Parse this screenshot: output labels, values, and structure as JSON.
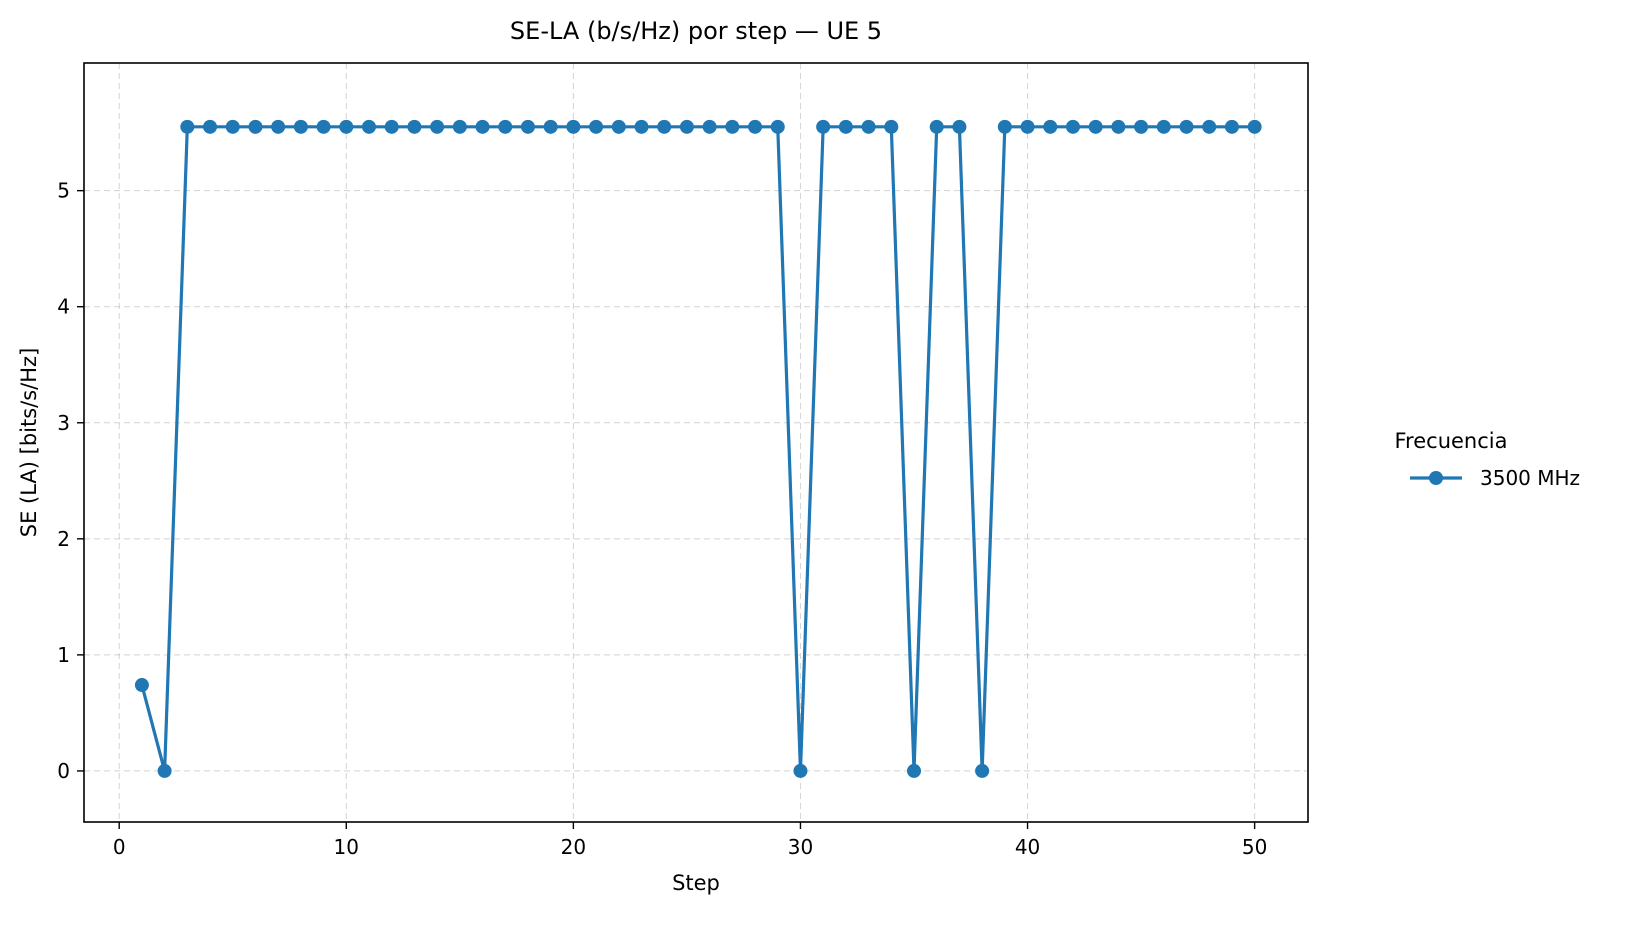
{
  "chart_data": {
    "type": "line",
    "title": "SE-LA (b/s/Hz) por step — UE 5",
    "xlabel": "Step",
    "ylabel": "SE (LA) [bits/s/Hz]",
    "xlim": [
      -1.55,
      52.35
    ],
    "ylim": [
      -0.44,
      6.1
    ],
    "xticks": [
      0,
      10,
      20,
      30,
      40,
      50
    ],
    "yticks": [
      0,
      1,
      2,
      3,
      4,
      5
    ],
    "grid": true,
    "legend": {
      "title": "Frecuencia",
      "placement": "right-outside"
    },
    "series": [
      {
        "name": "3500 MHz",
        "color": "#1f77b4",
        "marker": "circle",
        "x": [
          1,
          2,
          3,
          4,
          5,
          6,
          7,
          8,
          9,
          10,
          11,
          12,
          13,
          14,
          15,
          16,
          17,
          18,
          19,
          20,
          21,
          22,
          23,
          24,
          25,
          26,
          27,
          28,
          29,
          30,
          31,
          32,
          33,
          34,
          35,
          36,
          37,
          38,
          39,
          40,
          41,
          42,
          43,
          44,
          45,
          46,
          47,
          48,
          49,
          50
        ],
        "y": [
          0.74,
          0,
          5.55,
          5.55,
          5.55,
          5.55,
          5.55,
          5.55,
          5.55,
          5.55,
          5.55,
          5.55,
          5.55,
          5.55,
          5.55,
          5.55,
          5.55,
          5.55,
          5.55,
          5.55,
          5.55,
          5.55,
          5.55,
          5.55,
          5.55,
          5.55,
          5.55,
          5.55,
          5.55,
          0,
          5.55,
          5.55,
          5.55,
          5.55,
          0,
          5.55,
          5.55,
          0,
          5.55,
          5.55,
          5.55,
          5.55,
          5.55,
          5.55,
          5.55,
          5.55,
          5.55,
          5.55,
          5.55,
          5.55
        ]
      }
    ]
  }
}
